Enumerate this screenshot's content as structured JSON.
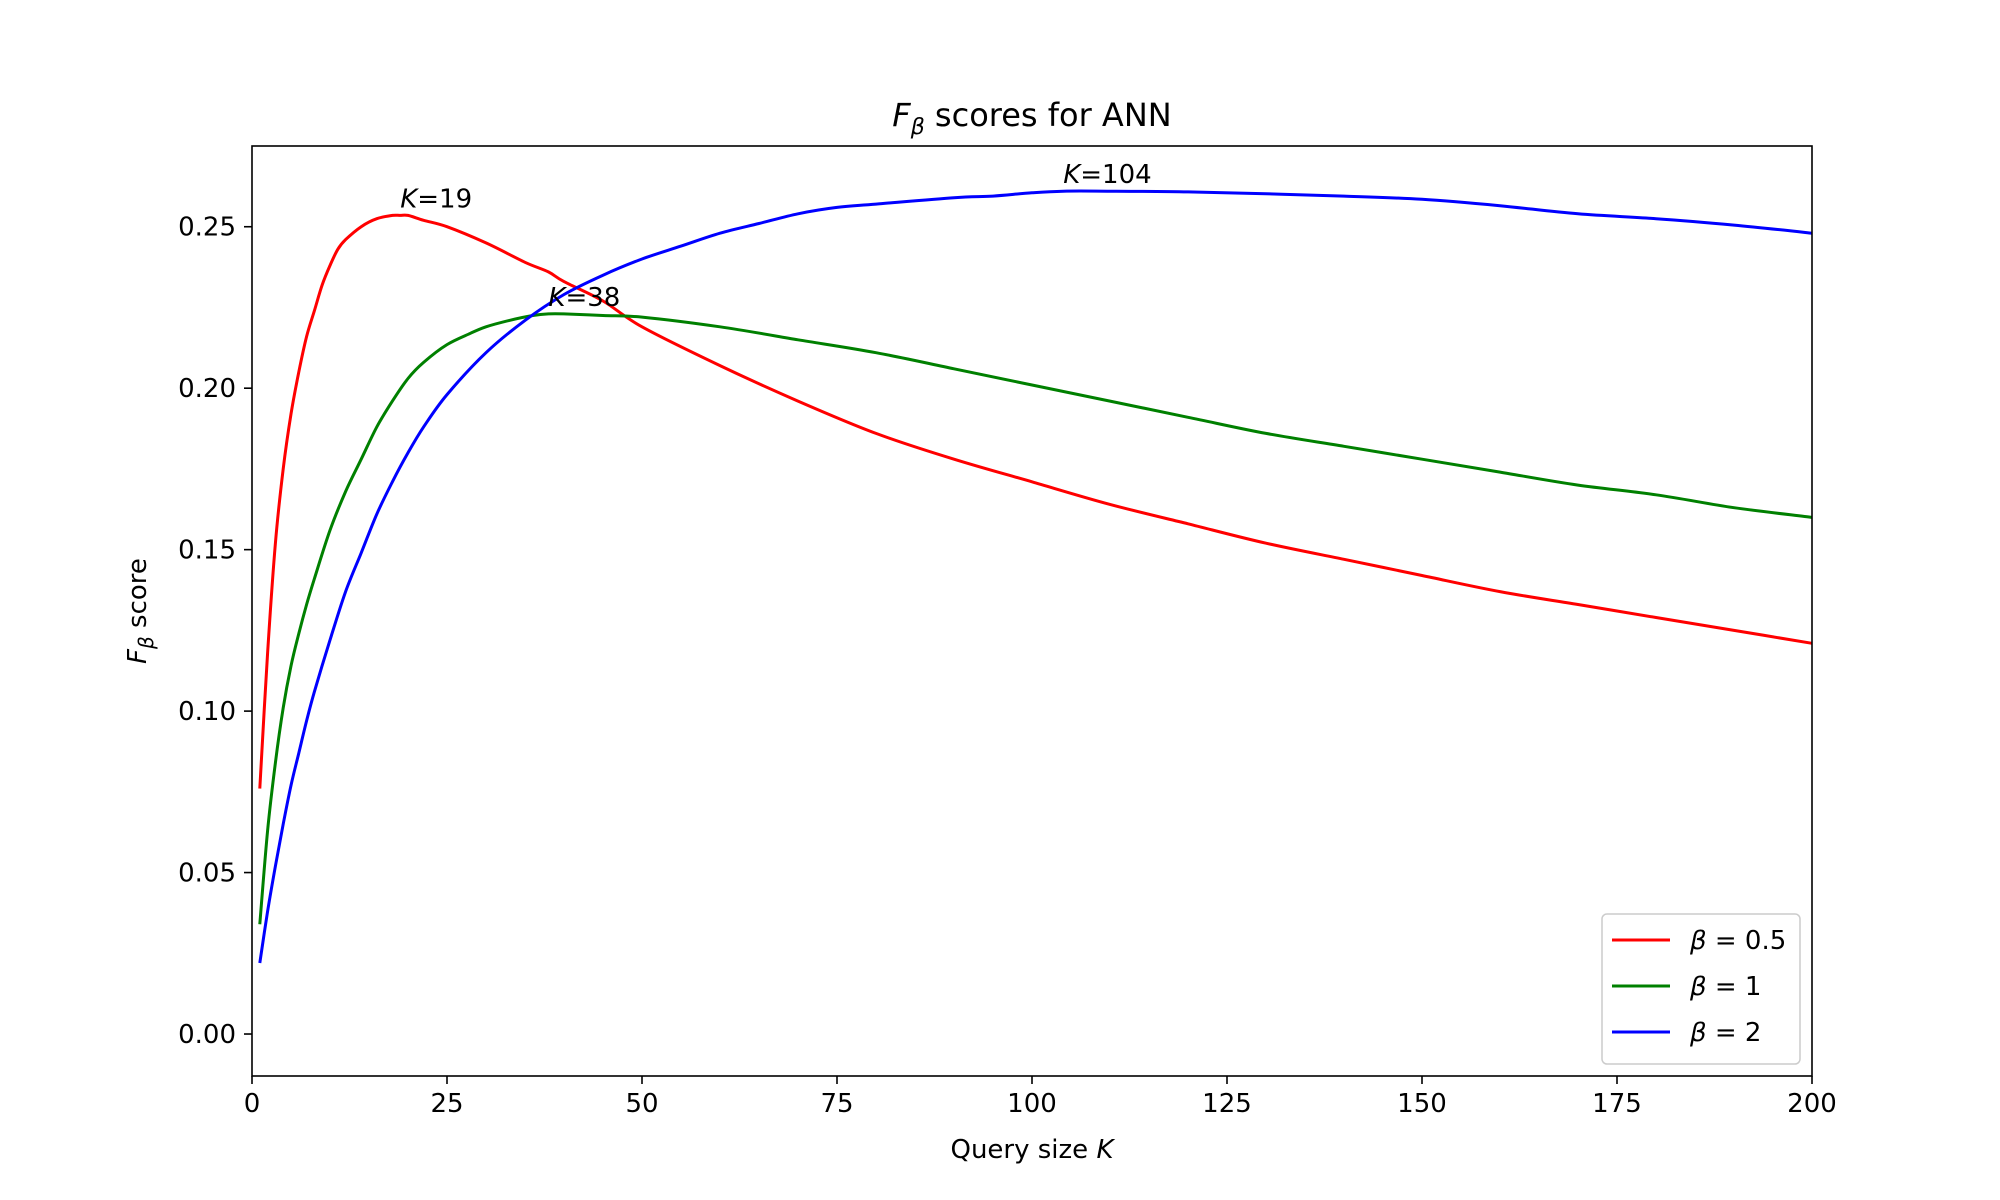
{
  "chart_data": {
    "type": "line",
    "title": {
      "sym": "F",
      "sub": "β",
      "rest": " scores for ANN"
    },
    "xlabel": {
      "text": "Query size ",
      "sym": "K"
    },
    "ylabel": {
      "sym": "F",
      "sub": "β",
      "rest": " score"
    },
    "xlim": [
      0,
      200
    ],
    "ylim": [
      -0.013,
      0.275
    ],
    "x_ticks": [
      0,
      25,
      50,
      75,
      100,
      125,
      150,
      175,
      200
    ],
    "x_tick_labels": [
      "0",
      "25",
      "50",
      "75",
      "100",
      "125",
      "150",
      "175",
      "200"
    ],
    "y_ticks": [
      0.0,
      0.05,
      0.1,
      0.15,
      0.2,
      0.25
    ],
    "y_tick_labels": [
      "0.00",
      "0.05",
      "0.10",
      "0.15",
      "0.20",
      "0.25"
    ],
    "grid": false,
    "legend_position": "lower-right",
    "series": [
      {
        "name": "β = 0.5",
        "legend": {
          "sym": "β",
          "rest": " = 0.5"
        },
        "color": "#ff0000",
        "x": [
          1,
          2,
          3,
          4,
          5,
          6,
          7,
          8,
          9,
          10,
          11,
          12,
          14,
          16,
          18,
          19,
          20,
          22,
          25,
          30,
          35,
          38,
          40,
          45,
          50,
          60,
          70,
          80,
          90,
          100,
          110,
          120,
          130,
          140,
          150,
          160,
          170,
          180,
          190,
          200
        ],
        "y": [
          0.076,
          0.118,
          0.152,
          0.175,
          0.192,
          0.205,
          0.216,
          0.224,
          0.232,
          0.238,
          0.243,
          0.246,
          0.25,
          0.2525,
          0.2535,
          0.2535,
          0.2535,
          0.252,
          0.25,
          0.245,
          0.239,
          0.236,
          0.233,
          0.227,
          0.219,
          0.207,
          0.196,
          0.186,
          0.178,
          0.171,
          0.164,
          0.158,
          0.152,
          0.147,
          0.142,
          0.137,
          0.133,
          0.129,
          0.125,
          0.121
        ]
      },
      {
        "name": "β = 1",
        "legend": {
          "sym": "β",
          "rest": " = 1"
        },
        "color": "#008000",
        "x": [
          1,
          2,
          3,
          4,
          5,
          6,
          7,
          8,
          10,
          12,
          14,
          16,
          18,
          20,
          22,
          25,
          28,
          30,
          33,
          36,
          38,
          40,
          45,
          50,
          60,
          70,
          80,
          90,
          100,
          110,
          120,
          130,
          140,
          150,
          160,
          170,
          180,
          190,
          200
        ],
        "y": [
          0.034,
          0.063,
          0.084,
          0.101,
          0.114,
          0.124,
          0.133,
          0.141,
          0.156,
          0.168,
          0.178,
          0.188,
          0.196,
          0.203,
          0.208,
          0.2135,
          0.217,
          0.219,
          0.221,
          0.2225,
          0.223,
          0.223,
          0.2225,
          0.222,
          0.219,
          0.215,
          0.211,
          0.206,
          0.201,
          0.196,
          0.191,
          0.186,
          0.182,
          0.178,
          0.174,
          0.17,
          0.167,
          0.163,
          0.16
        ]
      },
      {
        "name": "β = 2",
        "legend": {
          "sym": "β",
          "rest": " = 2"
        },
        "color": "#0000ff",
        "x": [
          1,
          2,
          3,
          4,
          5,
          6,
          7,
          8,
          10,
          12,
          14,
          16,
          18,
          20,
          22,
          25,
          30,
          35,
          40,
          45,
          50,
          55,
          60,
          65,
          70,
          75,
          80,
          90,
          95,
          100,
          104,
          110,
          120,
          130,
          140,
          150,
          160,
          170,
          180,
          190,
          200
        ],
        "y": [
          0.022,
          0.038,
          0.052,
          0.065,
          0.077,
          0.087,
          0.097,
          0.106,
          0.122,
          0.137,
          0.149,
          0.161,
          0.171,
          0.18,
          0.188,
          0.198,
          0.211,
          0.221,
          0.229,
          0.235,
          0.24,
          0.244,
          0.248,
          0.251,
          0.254,
          0.256,
          0.257,
          0.259,
          0.2595,
          0.2605,
          0.261,
          0.261,
          0.2608,
          0.2602,
          0.2595,
          0.2585,
          0.2565,
          0.254,
          0.2525,
          0.2505,
          0.248
        ]
      }
    ],
    "annotations": [
      {
        "sym": "K",
        "rest": "=19",
        "x": 19,
        "y": 0.2535
      },
      {
        "sym": "K",
        "rest": "=38",
        "x": 38,
        "y": 0.223
      },
      {
        "sym": "K",
        "rest": "=104",
        "x": 104,
        "y": 0.261
      }
    ]
  }
}
